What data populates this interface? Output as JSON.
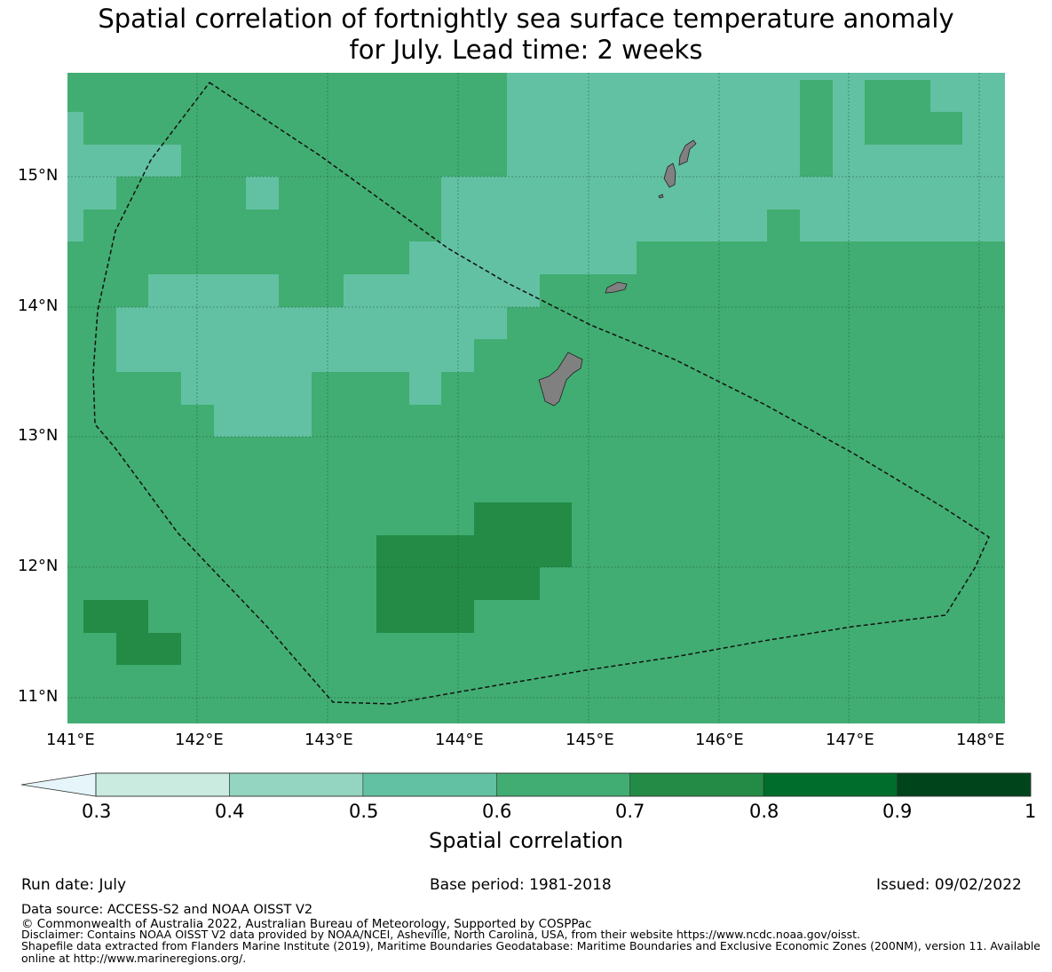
{
  "title_line1": "Spatial correlation of fortnightly sea surface temperature anomaly",
  "title_line2": "for July. Lead time: 2 weeks",
  "map": {
    "lon_range": [
      141.0,
      148.2
    ],
    "lat_range": [
      10.8,
      15.8
    ],
    "x_ticks": [
      "141°E",
      "142°E",
      "143°E",
      "144°E",
      "145°E",
      "146°E",
      "147°E",
      "148°E"
    ],
    "y_ticks": [
      "15°N",
      "14°N",
      "13°N",
      "12°N",
      "11°N"
    ],
    "grid_lines": true,
    "land_color": "#808080",
    "boundary_style": "dashed",
    "base_class": "0.6-0.7"
  },
  "colorbar": {
    "title": "Spatial correlation",
    "tick_labels": [
      "0.3",
      "0.4",
      "0.5",
      "0.6",
      "0.7",
      "0.8",
      "0.9",
      "1"
    ],
    "colors": [
      "#c9ebe0",
      "#94d5c1",
      "#62c1a2",
      "#41ad72",
      "#238b45",
      "#006d2c",
      "#00441b"
    ],
    "under_color": "#e5f5f9",
    "extend": "min"
  },
  "chart_data": {
    "type": "heatmap",
    "title": "Spatial correlation of fortnightly sea surface temperature anomaly for July. Lead time: 2 weeks",
    "xlabel": "",
    "ylabel": "",
    "xlim": [
      141.0,
      148.2
    ],
    "ylim": [
      10.8,
      15.8
    ],
    "x_ticks": [
      141,
      142,
      143,
      144,
      145,
      146,
      147,
      148
    ],
    "y_ticks": [
      11,
      12,
      13,
      14,
      15
    ],
    "colorbar_label": "Spatial correlation",
    "colorbar_bounds": [
      0.3,
      0.4,
      0.5,
      0.6,
      0.7,
      0.8,
      0.9,
      1.0
    ],
    "background_class": "0.6-0.7",
    "regions": [
      {
        "class": "0.5-0.6",
        "lon": [
          144.375,
          148.125
        ],
        "lat": [
          14.5,
          15.75
        ]
      },
      {
        "class": "0.5-0.6",
        "lon": [
          141.0,
          141.875
        ],
        "lat": [
          15.0,
          15.25
        ]
      },
      {
        "class": "0.5-0.6",
        "lon": [
          141.0,
          141.375
        ],
        "lat": [
          14.75,
          15.0
        ]
      },
      {
        "class": "0.5-0.6",
        "lon": [
          142.375,
          142.625
        ],
        "lat": [
          14.75,
          15.0
        ]
      },
      {
        "class": "0.5-0.6",
        "lon": [
          141.375,
          144.375
        ],
        "lat": [
          13.5,
          14.25
        ]
      },
      {
        "class": "0.5-0.6",
        "lon": [
          141.875,
          142.875
        ],
        "lat": [
          13.0,
          13.5
        ]
      },
      {
        "class": "0.5-0.6",
        "lon": [
          143.625,
          145.375
        ],
        "lat": [
          14.25,
          14.5
        ]
      },
      {
        "class": "0.7-0.8",
        "lon": [
          143.375,
          144.875
        ],
        "lat": [
          11.5,
          12.5
        ]
      },
      {
        "class": "0.7-0.8",
        "lon": [
          141.125,
          141.875
        ],
        "lat": [
          11.25,
          11.75
        ]
      }
    ]
  },
  "footer": {
    "run_date": "Run date: July",
    "base_period": "Base period: 1981-2018",
    "issued": "Issued: 09/02/2022",
    "data_source": "Data source: ACCESS-S2 and NOAA OISST V2",
    "copyright": "© Commonwealth of Australia 2022, Australian Bureau of Meteorology, Supported by COSPPac",
    "disclaimer": "Disclaimer: Contains NOAA OISST V2 data provided by NOAA/NCEI, Asheville, North Carolina, USA, from their website https://www.ncdc.noaa.gov/oisst.",
    "shapefile": "Shapefile data extracted from Flanders Marine Institute (2019), Maritime Boundaries Geodatabase: Maritime Boundaries and Exclusive Economic Zones (200NM), version 11. Available online at http://www.marineregions.org/."
  }
}
